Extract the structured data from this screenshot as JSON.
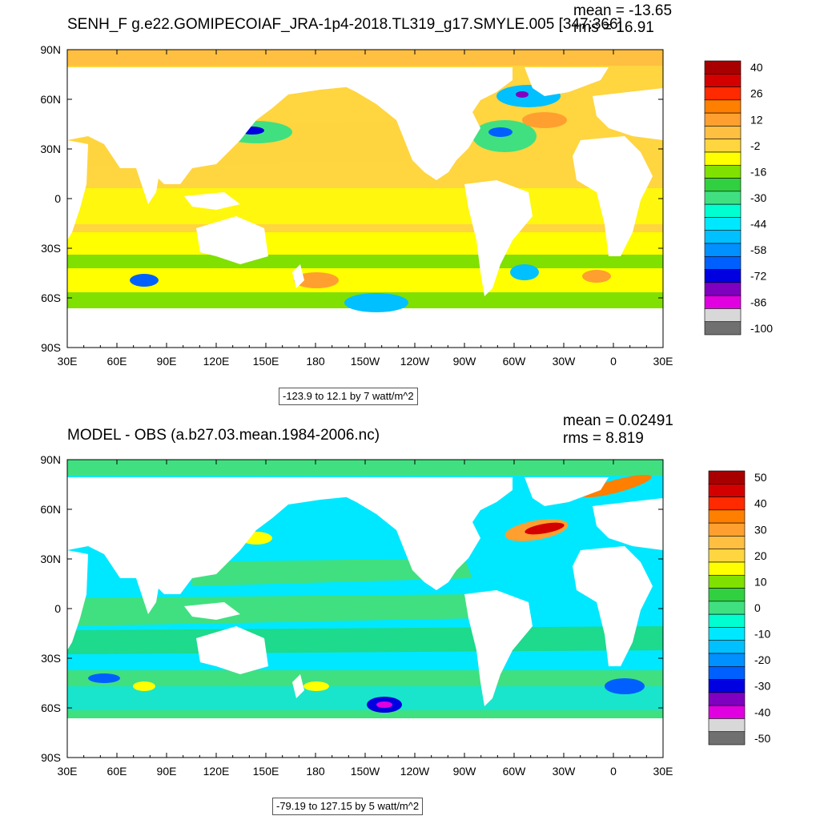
{
  "chart_data": [
    {
      "type": "heatmap",
      "title": "SENH_F g.e22.GOMIPECOIAF_JRA-1p4-2018.TL319_g17.SMYLE.005 [347:366]",
      "stats": {
        "mean": "mean = -13.65",
        "rms": "rms = 16.91"
      },
      "x_ticks": [
        "30E",
        "60E",
        "90E",
        "120E",
        "150E",
        "180",
        "150W",
        "120W",
        "90W",
        "60W",
        "30W",
        "0",
        "30E"
      ],
      "y_ticks": [
        "90N",
        "60N",
        "30N",
        "0",
        "30S",
        "60S",
        "90S"
      ],
      "colorbar_labels": [
        "40",
        "26",
        "12",
        "-2",
        "-16",
        "-30",
        "-44",
        "-58",
        "-72",
        "-86",
        "-100"
      ],
      "colorbar_colors": [
        "#a80000",
        "#d40000",
        "#ff2a00",
        "#ff7f00",
        "#ff9f30",
        "#ffbf40",
        "#ffd540",
        "#ffff00",
        "#80e000",
        "#30d040",
        "#40e080",
        "#00ffd0",
        "#00e8ff",
        "#00c0ff",
        "#0090ff",
        "#0060ff",
        "#0000e0",
        "#8000c0",
        "#e000e0",
        "#d8d8d8",
        "#707070"
      ],
      "contour_range": "-123.9 to 12.1 by 7 watt/m^2",
      "field": "sensible heat flux, mostly -2 to -16 over oceans, strongly negative in western boundary currents"
    },
    {
      "type": "heatmap",
      "title": "MODEL - OBS (a.b27.03.mean.1984-2006.nc)",
      "stats": {
        "mean": "mean = 0.02491",
        "rms": "rms = 8.819"
      },
      "x_ticks": [
        "30E",
        "60E",
        "90E",
        "120E",
        "150E",
        "180",
        "150W",
        "120W",
        "90W",
        "60W",
        "30W",
        "0",
        "30E"
      ],
      "y_ticks": [
        "90N",
        "60N",
        "30N",
        "0",
        "30S",
        "60S",
        "90S"
      ],
      "colorbar_labels": [
        "50",
        "40",
        "30",
        "20",
        "10",
        "0",
        "-10",
        "-20",
        "-30",
        "-40",
        "-50"
      ],
      "colorbar_colors": [
        "#a80000",
        "#d40000",
        "#ff2a00",
        "#ff7f00",
        "#ff9f30",
        "#ffbf40",
        "#ffd540",
        "#ffff00",
        "#80e000",
        "#30d040",
        "#40e080",
        "#00ffd0",
        "#00e8ff",
        "#00c0ff",
        "#0090ff",
        "#0060ff",
        "#0000e0",
        "#8000c0",
        "#e000e0",
        "#d8d8d8",
        "#707070"
      ],
      "contour_range": "-79.19 to 127.15 by 5 watt/m^2",
      "field": "difference field, mostly 0 to -10 with positive anomalies in Gulf Stream and Kuroshio"
    }
  ]
}
